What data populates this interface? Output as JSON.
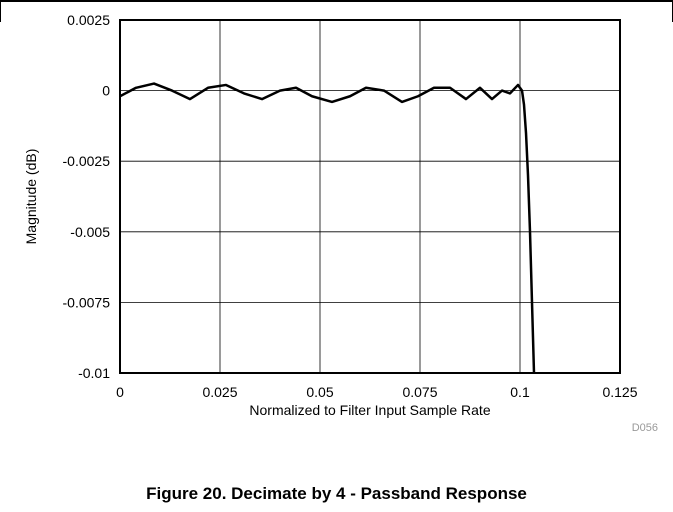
{
  "chart_data": {
    "type": "line",
    "title": "",
    "xlabel": "Normalized to Filter Input Sample Rate",
    "ylabel": "Magnitude (dB)",
    "xlim": [
      0,
      0.125
    ],
    "ylim": [
      -0.01,
      0.0025
    ],
    "x_ticks": [
      0,
      0.025,
      0.05,
      0.075,
      0.1,
      0.125
    ],
    "x_tick_labels": [
      "0",
      "0.025",
      "0.05",
      "0.075",
      "0.1",
      "0.125"
    ],
    "y_ticks": [
      0.0025,
      0,
      -0.0025,
      -0.005,
      -0.0075,
      -0.01
    ],
    "y_tick_labels": [
      "0.0025",
      "0",
      "-0.0025",
      "-0.005",
      "-0.0075",
      "-0.01"
    ],
    "grid": true,
    "series": [
      {
        "color": "#000000",
        "x": [
          0,
          0.004,
          0.0085,
          0.013,
          0.0175,
          0.022,
          0.0265,
          0.031,
          0.0355,
          0.04,
          0.044,
          0.048,
          0.053,
          0.0575,
          0.0615,
          0.066,
          0.0705,
          0.0745,
          0.0785,
          0.0825,
          0.0865,
          0.09,
          0.093,
          0.0955,
          0.0975,
          0.0995,
          0.1005,
          0.101,
          0.1015,
          0.102,
          0.1025,
          0.103,
          0.1035
        ],
        "y": [
          -0.0002,
          0.0001,
          0.00025,
          0.0,
          -0.0003,
          0.0001,
          0.0002,
          -0.0001,
          -0.0003,
          0.0,
          0.0001,
          -0.0002,
          -0.0004,
          -0.0002,
          0.0001,
          0.0,
          -0.0004,
          -0.0002,
          0.0001,
          0.0001,
          -0.0003,
          0.0001,
          -0.0003,
          0.0,
          -0.0001,
          0.0002,
          0.0,
          -0.0005,
          -0.0015,
          -0.003,
          -0.005,
          -0.0075,
          -0.01
        ]
      }
    ]
  },
  "figure": {
    "code": "D056",
    "caption": "Figure 20. Decimate by 4 - Passband Response"
  }
}
